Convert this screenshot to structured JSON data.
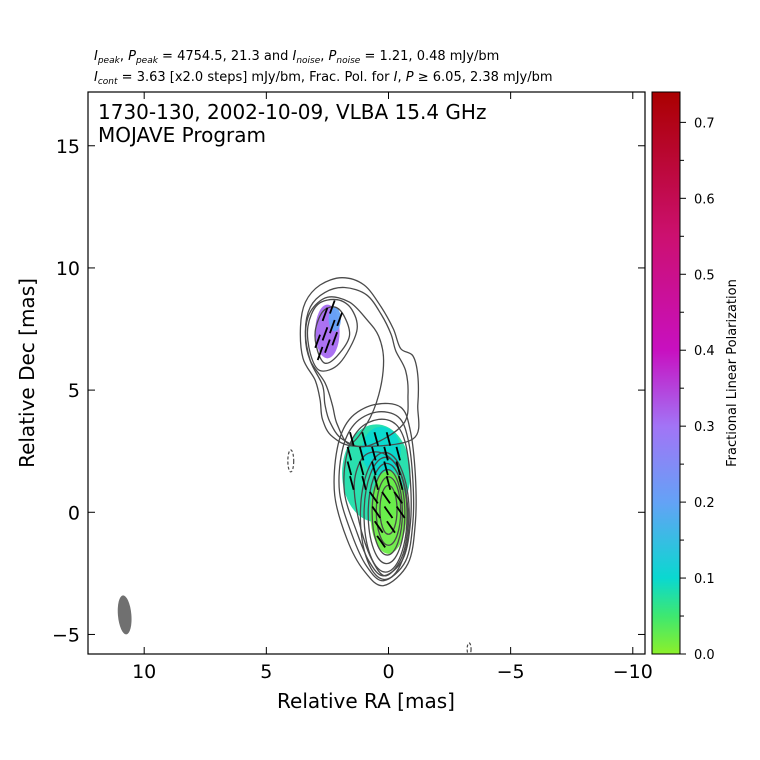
{
  "header": {
    "line1": {
      "sym_i": "I",
      "sub_peak": "peak",
      "comma1": ", ",
      "sym_p": "P",
      "sub_peak2": "peak",
      "part1": " = 4754.5, 21.3 and ",
      "sym_i2": "I",
      "sub_noise": "noise",
      "comma2": ", ",
      "sym_p2": "P",
      "sub_noise2": "noise",
      "part2": " = 1.21, 0.48 mJy/bm"
    },
    "line2": {
      "sym_i": "I",
      "sub_cont": "cont",
      "part1": " = 3.63 [x2.0 steps] mJy/bm, Frac. Pol. for ",
      "sym_i2": "I",
      "comma": ", ",
      "sym_p": "P",
      "part2": " ≥ 6.05, 2.38 mJy/bm"
    }
  },
  "chart_data": {
    "type": "contour",
    "annotation": [
      "1730-130, 2002-10-09, VLBA 15.4 GHz",
      "MOJAVE Program"
    ],
    "xlabel": "Relative RA [mas]",
    "ylabel": "Relative Dec [mas]",
    "xlim": [
      12.3,
      -10.5
    ],
    "ylim": [
      -5.8,
      17.2
    ],
    "xticks": [
      {
        "v": 10,
        "label": "10"
      },
      {
        "v": 5,
        "label": "5"
      },
      {
        "v": 0,
        "label": "0"
      },
      {
        "v": -5,
        "label": "−5"
      },
      {
        "v": -10,
        "label": "−10"
      }
    ],
    "yticks": [
      {
        "v": -5,
        "label": "−5"
      },
      {
        "v": 0,
        "label": "0"
      },
      {
        "v": 5,
        "label": "5"
      },
      {
        "v": 10,
        "label": "10"
      },
      {
        "v": 15,
        "label": "15"
      }
    ],
    "beam": {
      "x": 10.8,
      "y": -4.2,
      "major_mas": 1.6,
      "minor_mas": 0.55,
      "pa_deg": -5
    },
    "contour_color": "#4a4a4a",
    "core_contours": [
      {
        "x": 0,
        "y": 0.1,
        "rx": 0.35,
        "ry": 1.0
      },
      {
        "x": 0,
        "y": 0.05,
        "rx": 0.5,
        "ry": 1.4
      },
      {
        "x": 0.05,
        "y": 0.0,
        "rx": 0.62,
        "ry": 1.75
      },
      {
        "x": 0.08,
        "y": -0.05,
        "rx": 0.75,
        "ry": 2.05
      },
      {
        "x": 0.12,
        "y": -0.1,
        "rx": 0.88,
        "ry": 2.35
      },
      {
        "x": 0.15,
        "y": -0.15,
        "rx": 1.0,
        "ry": 2.6
      }
    ],
    "outer_contours": [
      [
        [
          0.2,
          -2.6
        ],
        [
          -0.6,
          -1.9
        ],
        [
          -0.9,
          -0.4
        ],
        [
          -0.9,
          1.2
        ],
        [
          -0.7,
          2.8
        ],
        [
          -0.3,
          3.6
        ],
        [
          0.4,
          3.8
        ],
        [
          1.2,
          3.4
        ],
        [
          1.7,
          2.4
        ],
        [
          1.8,
          0.8
        ],
        [
          1.3,
          -0.8
        ],
        [
          0.8,
          -2.0
        ]
      ],
      [
        [
          0.2,
          -2.8
        ],
        [
          -0.7,
          -2.0
        ],
        [
          -1.0,
          -0.4
        ],
        [
          -1.0,
          1.3
        ],
        [
          -0.8,
          3.0
        ],
        [
          -0.4,
          3.9
        ],
        [
          0.5,
          4.1
        ],
        [
          1.4,
          3.6
        ],
        [
          1.9,
          2.5
        ],
        [
          2.0,
          0.8
        ],
        [
          1.5,
          -0.9
        ],
        [
          0.9,
          -2.2
        ]
      ],
      [
        [
          0.2,
          -3.0
        ],
        [
          -0.8,
          -2.1
        ],
        [
          -1.1,
          -0.4
        ],
        [
          -1.1,
          1.5
        ],
        [
          -0.9,
          3.3
        ],
        [
          -0.5,
          4.3
        ],
        [
          0.6,
          4.4
        ],
        [
          1.6,
          3.8
        ],
        [
          2.1,
          2.6
        ],
        [
          2.2,
          0.7
        ],
        [
          1.7,
          -1.1
        ],
        [
          1.0,
          -2.4
        ]
      ],
      [
        [
          0.1,
          -2.6
        ],
        [
          -0.6,
          -1.7
        ],
        [
          -0.8,
          0.0
        ],
        [
          -0.5,
          1.6
        ],
        [
          0.2,
          2.4
        ],
        [
          1.0,
          2.3
        ],
        [
          1.4,
          1.2
        ],
        [
          1.2,
          -0.4
        ],
        [
          0.7,
          -1.9
        ]
      ],
      [
        [
          1.6,
          7.2
        ],
        [
          2.1,
          6.4
        ],
        [
          2.6,
          6.1
        ],
        [
          2.9,
          6.6
        ],
        [
          3.0,
          7.4
        ],
        [
          2.7,
          8.2
        ],
        [
          2.2,
          8.4
        ],
        [
          1.8,
          8.0
        ]
      ],
      [
        [
          1.3,
          7.4
        ],
        [
          2.0,
          6.1
        ],
        [
          2.8,
          5.8
        ],
        [
          3.2,
          6.5
        ],
        [
          3.3,
          7.6
        ],
        [
          2.9,
          8.5
        ],
        [
          2.1,
          8.7
        ],
        [
          1.5,
          8.3
        ]
      ],
      [
        [
          0.9,
          3.6
        ],
        [
          0.4,
          4.8
        ],
        [
          0.2,
          6.2
        ],
        [
          0.4,
          7.2
        ],
        [
          0.9,
          7.9
        ],
        [
          1.6,
          8.6
        ],
        [
          2.5,
          8.8
        ],
        [
          3.2,
          8.2
        ],
        [
          3.4,
          7.2
        ],
        [
          3.2,
          6.2
        ],
        [
          2.6,
          5.3
        ],
        [
          2.3,
          4.4
        ],
        [
          2.1,
          3.6
        ],
        [
          1.6,
          2.8
        ]
      ],
      [
        [
          -0.6,
          3.6
        ],
        [
          -0.8,
          4.8
        ],
        [
          -0.7,
          5.8
        ],
        [
          -0.3,
          6.6
        ],
        [
          -0.1,
          7.3
        ],
        [
          0.3,
          8.1
        ],
        [
          0.9,
          8.9
        ],
        [
          1.8,
          9.2
        ],
        [
          2.6,
          9.0
        ],
        [
          3.2,
          8.4
        ],
        [
          3.4,
          7.4
        ],
        [
          3.2,
          6.2
        ],
        [
          2.7,
          5.2
        ],
        [
          2.6,
          4.4
        ],
        [
          2.4,
          3.7
        ],
        [
          1.9,
          3.0
        ],
        [
          0.9,
          2.7
        ]
      ],
      [
        [
          -1.0,
          3.0
        ],
        [
          -1.2,
          4.4
        ],
        [
          -1.2,
          5.6
        ],
        [
          -1.0,
          6.4
        ],
        [
          -0.5,
          6.7
        ],
        [
          -0.2,
          7.5
        ],
        [
          0.3,
          8.4
        ],
        [
          1.0,
          9.3
        ],
        [
          1.9,
          9.6
        ],
        [
          2.8,
          9.3
        ],
        [
          3.4,
          8.6
        ],
        [
          3.6,
          7.6
        ],
        [
          3.5,
          6.3
        ],
        [
          3.0,
          5.4
        ],
        [
          2.8,
          4.6
        ],
        [
          2.7,
          3.8
        ],
        [
          2.3,
          3.1
        ],
        [
          1.3,
          2.7
        ]
      ]
    ],
    "dashed_contours": [
      {
        "x": 4.0,
        "y": 2.1,
        "rx": 0.12,
        "ry": 0.45
      },
      {
        "x": -3.3,
        "y": -5.6,
        "rx": 0.08,
        "ry": 0.25
      }
    ],
    "pol_regions": [
      {
        "x": 2.5,
        "y": 7.4,
        "rx": 0.5,
        "ry": 1.1,
        "frac": 0.31
      },
      {
        "x": 2.2,
        "y": 7.9,
        "rx": 0.25,
        "ry": 0.5,
        "frac": 0.2
      },
      {
        "x": 0.5,
        "y": 1.6,
        "rx": 1.4,
        "ry": 2.0,
        "frac": 0.08
      },
      {
        "x": 0.3,
        "y": 2.5,
        "rx": 0.8,
        "ry": 1.0,
        "frac": 0.1
      },
      {
        "x": 0.0,
        "y": 0.0,
        "rx": 0.75,
        "ry": 1.7,
        "frac": 0.02
      }
    ],
    "evpa_vectors": [
      [
        2.9,
        7.0,
        20
      ],
      [
        2.6,
        7.3,
        20
      ],
      [
        2.3,
        7.6,
        20
      ],
      [
        2.0,
        7.9,
        20
      ],
      [
        2.8,
        6.5,
        20
      ],
      [
        2.5,
        6.8,
        20
      ],
      [
        2.2,
        7.1,
        20
      ],
      [
        2.6,
        8.1,
        20
      ],
      [
        2.3,
        8.4,
        20
      ],
      [
        1.5,
        3.0,
        -15
      ],
      [
        1.0,
        3.0,
        -15
      ],
      [
        0.5,
        3.0,
        -15
      ],
      [
        0.0,
        3.0,
        -15
      ],
      [
        1.6,
        2.4,
        -15
      ],
      [
        1.1,
        2.4,
        -15
      ],
      [
        0.6,
        2.4,
        -15
      ],
      [
        0.1,
        2.4,
        -15
      ],
      [
        -0.4,
        2.4,
        -15
      ],
      [
        1.6,
        1.8,
        -15
      ],
      [
        1.1,
        1.8,
        -15
      ],
      [
        0.6,
        1.8,
        -15
      ],
      [
        0.1,
        1.8,
        -15
      ],
      [
        -0.4,
        1.8,
        -15
      ],
      [
        1.5,
        1.2,
        -15
      ],
      [
        1.0,
        1.2,
        -15
      ],
      [
        0.5,
        1.2,
        -15
      ],
      [
        0.0,
        1.2,
        -15
      ],
      [
        -0.5,
        1.2,
        -15
      ],
      [
        0.6,
        0.6,
        -35
      ],
      [
        0.1,
        0.6,
        -35
      ],
      [
        -0.4,
        0.6,
        -35
      ],
      [
        0.5,
        0.0,
        -35
      ],
      [
        0.0,
        0.0,
        -35
      ],
      [
        -0.5,
        0.0,
        -35
      ],
      [
        0.4,
        -0.6,
        -35
      ],
      [
        -0.1,
        -0.6,
        -35
      ],
      [
        0.3,
        -1.2,
        -35
      ]
    ],
    "colorbar": {
      "label": "Fractional Linear Polarization",
      "ticks": [
        {
          "v": 0.0,
          "label": "0.0"
        },
        {
          "v": 0.1,
          "label": "0.1"
        },
        {
          "v": 0.2,
          "label": "0.2"
        },
        {
          "v": 0.3,
          "label": "0.3"
        },
        {
          "v": 0.4,
          "label": "0.4"
        },
        {
          "v": 0.5,
          "label": "0.5"
        },
        {
          "v": 0.6,
          "label": "0.6"
        },
        {
          "v": 0.7,
          "label": "0.7"
        }
      ],
      "range": [
        0.0,
        0.74
      ],
      "stops": [
        {
          "v": 0.0,
          "color": "#8cf02a"
        },
        {
          "v": 0.05,
          "color": "#3ee870"
        },
        {
          "v": 0.1,
          "color": "#0ad8d0"
        },
        {
          "v": 0.2,
          "color": "#64a2f6"
        },
        {
          "v": 0.3,
          "color": "#a274f6"
        },
        {
          "v": 0.4,
          "color": "#c810c0"
        },
        {
          "v": 0.55,
          "color": "#cc1070"
        },
        {
          "v": 0.74,
          "color": "#aa0000"
        }
      ]
    }
  }
}
